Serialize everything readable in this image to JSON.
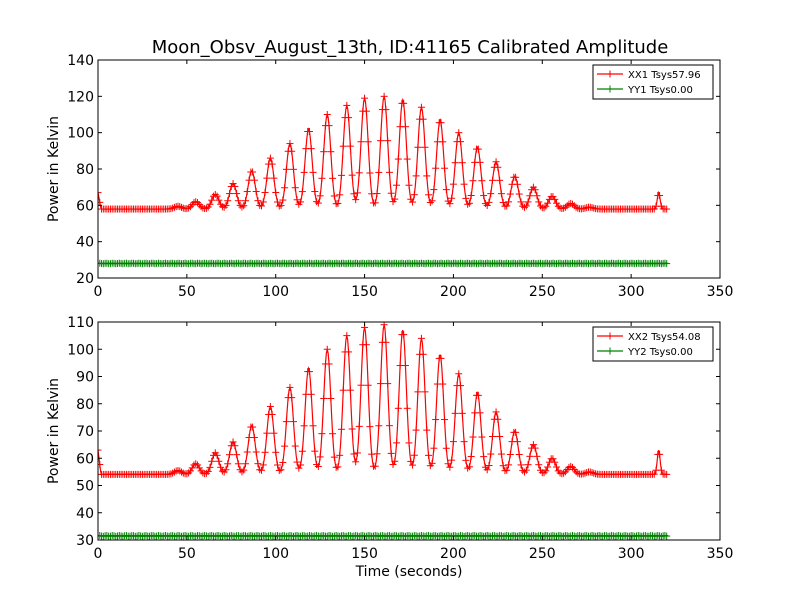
{
  "figure": {
    "title": "Moon_Obsv_August_13th, ID:41165 Calibrated Amplitude"
  },
  "chart_data": [
    {
      "type": "line",
      "title": "Moon_Obsv_August_13th, ID:41165 Calibrated Amplitude",
      "xlabel": "",
      "ylabel": "Power in Kelvin",
      "xlim": [
        0,
        350
      ],
      "ylim": [
        20,
        140
      ],
      "xticks": [
        0,
        50,
        100,
        150,
        200,
        250,
        300,
        350
      ],
      "yticks": [
        20,
        40,
        60,
        80,
        100,
        120,
        140
      ],
      "grid": false,
      "legend": "top-right",
      "baseline": 57.96,
      "start_value": 67,
      "end_spike": {
        "x": 315.5,
        "y": 67
      },
      "peaks": [
        {
          "x": 45,
          "y": 59.5
        },
        {
          "x": 55,
          "y": 62
        },
        {
          "x": 66,
          "y": 66
        },
        {
          "x": 76,
          "y": 72
        },
        {
          "x": 86.5,
          "y": 79
        },
        {
          "x": 97,
          "y": 86
        },
        {
          "x": 108,
          "y": 94
        },
        {
          "x": 118.5,
          "y": 102
        },
        {
          "x": 129,
          "y": 110
        },
        {
          "x": 140,
          "y": 115
        },
        {
          "x": 150,
          "y": 119
        },
        {
          "x": 161,
          "y": 120
        },
        {
          "x": 171.5,
          "y": 118
        },
        {
          "x": 182,
          "y": 114
        },
        {
          "x": 192.5,
          "y": 107
        },
        {
          "x": 203,
          "y": 100
        },
        {
          "x": 213.5,
          "y": 92
        },
        {
          "x": 224,
          "y": 84
        },
        {
          "x": 234.5,
          "y": 76
        },
        {
          "x": 245,
          "y": 70
        },
        {
          "x": 255.5,
          "y": 65
        },
        {
          "x": 266,
          "y": 61
        },
        {
          "x": 276.5,
          "y": 59
        }
      ],
      "series": [
        {
          "name": "XX1 Tsys57.96",
          "color": "#ff0000",
          "x_range": [
            0,
            320
          ]
        },
        {
          "name": "YY1 Tsys0.00",
          "color": "#008000",
          "x_range": [
            0,
            320
          ],
          "constant": 28
        }
      ]
    },
    {
      "type": "line",
      "title": "",
      "xlabel": "Time (seconds)",
      "ylabel": "Power in Kelvin",
      "xlim": [
        0,
        350
      ],
      "ylim": [
        30,
        110
      ],
      "xticks": [
        0,
        50,
        100,
        150,
        200,
        250,
        300,
        350
      ],
      "yticks": [
        30,
        40,
        50,
        60,
        70,
        80,
        90,
        100,
        110
      ],
      "grid": false,
      "legend": "top-right",
      "baseline": 54.08,
      "start_value": 63,
      "end_spike": {
        "x": 315.5,
        "y": 63
      },
      "peaks": [
        {
          "x": 45,
          "y": 55.5
        },
        {
          "x": 55,
          "y": 58
        },
        {
          "x": 66,
          "y": 62
        },
        {
          "x": 76,
          "y": 66
        },
        {
          "x": 86.5,
          "y": 72
        },
        {
          "x": 97,
          "y": 79
        },
        {
          "x": 108,
          "y": 86
        },
        {
          "x": 118.5,
          "y": 93
        },
        {
          "x": 129,
          "y": 100
        },
        {
          "x": 140,
          "y": 105
        },
        {
          "x": 150,
          "y": 108
        },
        {
          "x": 161,
          "y": 109
        },
        {
          "x": 171.5,
          "y": 107
        },
        {
          "x": 182,
          "y": 104
        },
        {
          "x": 192.5,
          "y": 98
        },
        {
          "x": 203,
          "y": 91
        },
        {
          "x": 213.5,
          "y": 84
        },
        {
          "x": 224,
          "y": 77
        },
        {
          "x": 234.5,
          "y": 70
        },
        {
          "x": 245,
          "y": 65
        },
        {
          "x": 255.5,
          "y": 60
        },
        {
          "x": 266,
          "y": 57
        },
        {
          "x": 276.5,
          "y": 55
        }
      ],
      "series": [
        {
          "name": "XX2 Tsys54.08",
          "color": "#ff0000",
          "x_range": [
            0,
            320
          ]
        },
        {
          "name": "YY2 Tsys0.00",
          "color": "#008000",
          "x_range": [
            0,
            320
          ],
          "constant": 31.5
        }
      ]
    }
  ]
}
